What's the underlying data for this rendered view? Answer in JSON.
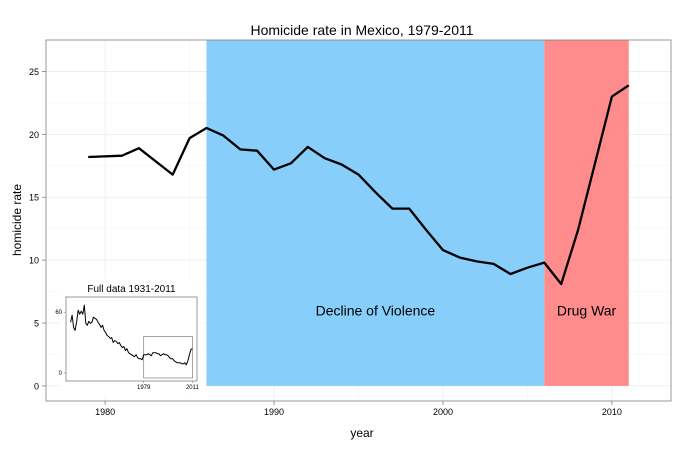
{
  "chart_data": {
    "type": "line",
    "title": "Homicide rate in Mexico, 1979-2011",
    "xlabel": "year",
    "ylabel": "homicide rate",
    "xlim": [
      1976.5,
      2013.5
    ],
    "ylim": [
      -1.2,
      27.5
    ],
    "xticks": [
      1980,
      1990,
      2000,
      2010
    ],
    "yticks": [
      0,
      5,
      10,
      15,
      20,
      25
    ],
    "grid": true,
    "colors": {
      "line": "#000000",
      "decline": "#87CEFA",
      "drugwar": "#FF8C8C",
      "grid": "#ECECEC"
    },
    "regions": [
      {
        "label": "Decline of Violence",
        "start": 1986,
        "end": 2006,
        "color": "#87CEFA"
      },
      {
        "label": "Drug War",
        "start": 2006,
        "end": 2011,
        "color": "#FF8C8C"
      }
    ],
    "series": [
      {
        "x": [
          1979,
          1981,
          1982,
          1984,
          1985,
          1986,
          1987,
          1988,
          1989,
          1990,
          1991,
          1992,
          1993,
          1994,
          1995,
          1996,
          1997,
          1998,
          1999,
          2000,
          2001,
          2002,
          2003,
          2004,
          2005,
          2006,
          2007,
          2008,
          2009,
          2010,
          2011
        ],
        "y": [
          18.2,
          18.3,
          18.9,
          16.8,
          19.7,
          20.5,
          19.9,
          18.8,
          18.7,
          17.2,
          17.7,
          19.0,
          18.1,
          17.6,
          16.8,
          15.4,
          14.1,
          14.1,
          12.4,
          10.8,
          10.2,
          9.9,
          9.7,
          8.9,
          9.4,
          9.8,
          8.1,
          12.4,
          17.7,
          23.0,
          23.9
        ]
      }
    ],
    "inset": {
      "type": "line",
      "title": "Full data 1931-2011",
      "xlim": [
        1928,
        2014
      ],
      "ylim": [
        -8,
        75
      ],
      "xticks": [
        1979,
        2011
      ],
      "yticks": [
        0,
        60
      ],
      "highlight_box": {
        "x": [
          1979,
          2011
        ],
        "y": [
          -5,
          36
        ]
      },
      "series": [
        {
          "x": [
            1931,
            1932,
            1933,
            1934,
            1935,
            1936,
            1937,
            1938,
            1939,
            1940,
            1941,
            1942,
            1943,
            1944,
            1945,
            1946,
            1947,
            1948,
            1949,
            1950,
            1951,
            1952,
            1953,
            1954,
            1955,
            1956,
            1957,
            1958,
            1959,
            1960,
            1961,
            1962,
            1963,
            1964,
            1965,
            1966,
            1967,
            1968,
            1969,
            1970,
            1971,
            1972,
            1973,
            1974,
            1975,
            1976,
            1977,
            1978,
            1979,
            1980,
            1981,
            1982,
            1983,
            1984,
            1985,
            1986,
            1987,
            1988,
            1989,
            1990,
            1991,
            1992,
            1993,
            1994,
            1995,
            1996,
            1997,
            1998,
            1999,
            2000,
            2001,
            2002,
            2003,
            2004,
            2005,
            2006,
            2007,
            2008,
            2009,
            2010,
            2011
          ],
          "y": [
            50,
            57,
            45,
            42,
            51,
            62,
            58,
            61,
            58,
            67,
            49,
            47,
            51,
            49,
            50,
            55,
            54,
            53,
            50,
            48,
            45,
            47,
            42,
            40,
            37,
            36,
            34,
            35,
            30,
            32,
            31,
            29,
            30,
            27,
            25,
            26,
            22,
            24,
            20,
            19,
            18,
            17,
            16,
            18,
            15,
            14,
            14,
            13,
            18,
            18,
            18,
            19,
            18,
            17,
            20,
            20,
            20,
            19,
            19,
            17,
            18,
            19,
            18,
            18,
            17,
            15,
            14,
            14,
            12,
            11,
            10,
            10,
            10,
            9,
            9,
            10,
            8,
            12,
            18,
            23,
            24
          ]
        }
      ]
    }
  }
}
